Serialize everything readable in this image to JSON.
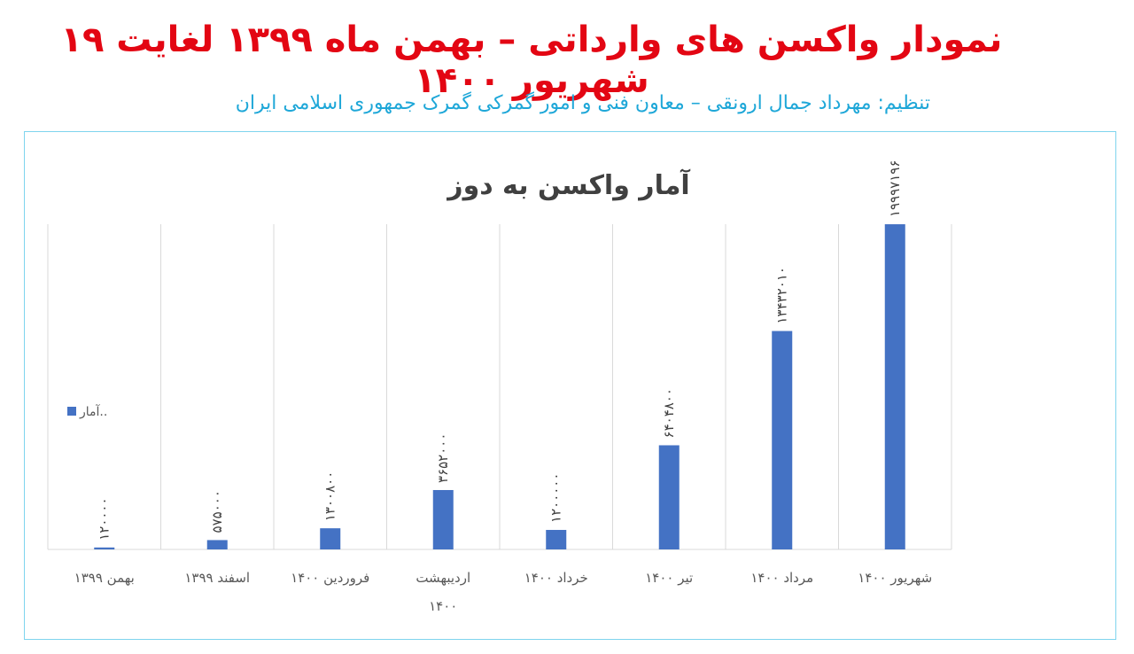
{
  "header": {
    "title": "نمودار واکسن های وارداتی – بهمن ماه ۱۳۹۹ لغایت ۱۹ شهریور ۱۴۰۰",
    "subtitle": "تنظیم: مهرداد جمال ارونقی – معاون فنی و امور گمرکی گمرک جمهوری اسلامی ایران"
  },
  "colors": {
    "title": "#e30613",
    "subtitle": "#1ea7d8",
    "bar": "#4472c4",
    "frame": "#7fd4ee",
    "grid": "#d9d9d9"
  },
  "chart_data": {
    "type": "bar",
    "title": "آمار واکسن به دوز",
    "categories": [
      "بهمن ۱۳۹۹",
      "اسفند ۱۳۹۹",
      "فروردین ۱۴۰۰",
      "اردیبهشت ۱۴۰۰",
      "خرداد ۱۴۰۰",
      "تیر ۱۴۰۰",
      "مرداد ۱۴۰۰",
      "شهریور ۱۴۰۰"
    ],
    "series": [
      {
        "name": "آمار..",
        "values": [
          120000,
          575000,
          1300800,
          3652000,
          1200000,
          6404800,
          13432010,
          19997196
        ],
        "labels": [
          "۱۲۰۰۰۰",
          "۵۷۵۰۰۰",
          "۱۳۰۰۸۰۰",
          "۳۶۵۲۰۰۰",
          "۱۲۰۰۰۰۰",
          "۶۴۰۴۸۰۰",
          "۱۳۴۳۲۰۱۰",
          "۱۹۹۹۷۱۹۶"
        ]
      }
    ],
    "ylim": [
      0,
      20000000
    ],
    "grid": true,
    "legend_position": "left"
  }
}
